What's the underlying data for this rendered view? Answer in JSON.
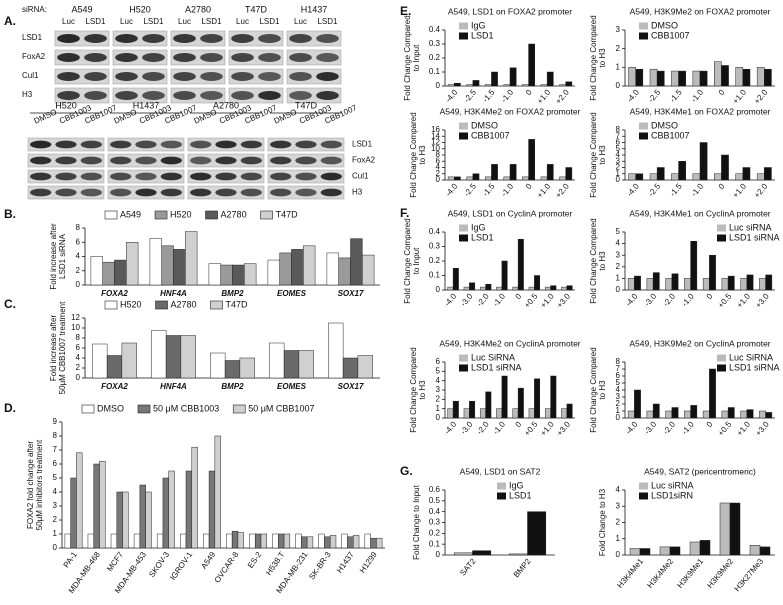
{
  "blots": {
    "panel": "A.",
    "siRNA_label": "siRNA:",
    "top": {
      "cell_lines": [
        {
          "name": "A549",
          "lanes": [
            "Luc",
            "LSD1"
          ]
        },
        {
          "name": "H520",
          "lanes": [
            "Luc",
            "LSD1"
          ]
        },
        {
          "name": "A2780",
          "lanes": [
            "Luc",
            "LSD1"
          ]
        },
        {
          "name": "T47D",
          "lanes": [
            "Luc",
            "LSD1"
          ]
        },
        {
          "name": "H1437",
          "lanes": [
            "Luc",
            "LSD1"
          ]
        }
      ],
      "rows": [
        "LSD1",
        "FoxA2",
        "Cul1",
        "H3"
      ]
    },
    "bottom": {
      "cell_lines": [
        {
          "name": "H520",
          "lanes": [
            "DMSO",
            "CBB1003",
            "CBB1007"
          ]
        },
        {
          "name": "H1437",
          "lanes": [
            "DMSO",
            "CBB1003",
            "CBB1007"
          ]
        },
        {
          "name": "A2780",
          "lanes": [
            "DMSO",
            "CBB1003",
            "CBB1007"
          ]
        },
        {
          "name": "T47D",
          "lanes": [
            "DMSO",
            "CBB1003",
            "CBB1007"
          ]
        }
      ],
      "rows": [
        "LSD1",
        "FoxA2",
        "Cul1",
        "H3"
      ]
    }
  },
  "chart_data": [
    {
      "type": "bar",
      "panel": "B.",
      "ylabel": [
        "Fold increase after",
        "LSD1 siRNA"
      ],
      "legend": "top",
      "categories": [
        "FOXA2",
        "HNF4A",
        "BMP2",
        "EOMES",
        "SOX17"
      ],
      "ylim": [
        0,
        8
      ],
      "yticks": [
        0,
        2,
        4,
        6,
        8
      ],
      "series": [
        {
          "name": "A549",
          "color": "#ffffff",
          "values": [
            4,
            6.5,
            3,
            3.5,
            4.5
          ]
        },
        {
          "name": "H520",
          "color": "#9a9a9a",
          "values": [
            3.2,
            5.5,
            2.8,
            4.5,
            3.8
          ]
        },
        {
          "name": "A2780",
          "color": "#5a5a5a",
          "values": [
            3.5,
            5,
            2.8,
            5,
            6.5
          ]
        },
        {
          "name": "T47D",
          "color": "#d0d0d0",
          "values": [
            6,
            7.5,
            3,
            5.5,
            4.2
          ]
        }
      ]
    },
    {
      "type": "bar",
      "panel": "C.",
      "ylabel": [
        "Fold increase after",
        "50μM CBB1007 treatment"
      ],
      "legend": "top",
      "categories": [
        "FOXA2",
        "HNF4A",
        "BMP2",
        "EOMES",
        "SOX17"
      ],
      "ylim": [
        0,
        12
      ],
      "yticks": [
        0,
        2,
        4,
        6,
        8,
        10,
        12
      ],
      "series": [
        {
          "name": "H520",
          "color": "#ffffff",
          "values": [
            6.8,
            9.5,
            5,
            7,
            11
          ]
        },
        {
          "name": "A2780",
          "color": "#6a6a6a",
          "values": [
            4.5,
            8.5,
            3.5,
            5.5,
            4
          ]
        },
        {
          "name": "T47D",
          "color": "#d0d0d0",
          "values": [
            7,
            8.5,
            4,
            5.5,
            4.5
          ]
        }
      ]
    },
    {
      "type": "bar",
      "panel": "D.",
      "ylabel": [
        "FOXA2 fold change after",
        "50μM inhibitors treatment"
      ],
      "legend": "top",
      "categories": [
        "PA-1",
        "MDA-MB-468",
        "MCF7",
        "MDA-MB-453",
        "SKOV-3",
        "IGROV-1",
        "A549",
        "OVCAR-8",
        "ES-2",
        "H538.T",
        "MDA-MB-231",
        "SK-BR-3",
        "H1437",
        "H1299"
      ],
      "ylim": [
        0,
        9
      ],
      "yticks": [
        0,
        1,
        2,
        3,
        4,
        5,
        6,
        7,
        8,
        9
      ],
      "series": [
        {
          "name": "DMSO",
          "color": "#ffffff",
          "values": [
            1,
            1,
            1,
            1,
            1,
            1,
            1,
            1,
            1,
            1,
            1,
            1,
            1,
            1
          ]
        },
        {
          "name": "50 μM CBB1003",
          "color": "#777777",
          "values": [
            5,
            6,
            4,
            4.5,
            5,
            5.5,
            5.5,
            1.2,
            1,
            1,
            0.8,
            0.8,
            0.8,
            0.7
          ]
        },
        {
          "name": "50 μM CBB1007",
          "color": "#cfcfcf",
          "values": [
            6.8,
            6.2,
            4,
            4,
            5.5,
            7.2,
            8,
            1.1,
            1,
            1,
            0.8,
            0.9,
            0.9,
            0.7
          ]
        }
      ]
    },
    {
      "type": "bar",
      "panel": "E.",
      "title": "A549, LSD1 on FOXA2 promoter",
      "ylabel": [
        "Fold Change Compared",
        "to Input"
      ],
      "legend": "upper left",
      "categories": [
        "-4.0",
        "-2.5",
        "-1.5",
        "-1.0",
        "0",
        "+1.0",
        "+2.0"
      ],
      "ylim": [
        0,
        0.4
      ],
      "yticks": [
        0,
        0.1,
        0.2,
        0.3,
        0.4
      ],
      "series": [
        {
          "name": "IgG",
          "color": "#bbbbbb",
          "values": [
            0.01,
            0.01,
            0.01,
            0.01,
            0.01,
            0.01,
            0.01
          ]
        },
        {
          "name": "LSD1",
          "color": "#111111",
          "values": [
            0.02,
            0.04,
            0.1,
            0.13,
            0.3,
            0.1,
            0.03
          ]
        }
      ]
    },
    {
      "type": "bar",
      "title": "A549, H3K9Me2 on FOXA2 promoter",
      "ylabel": [
        "Fold Change Compared",
        "to H3"
      ],
      "legend": "upper left",
      "categories": [
        "-4.0",
        "-2.5",
        "-1.5",
        "-1.0",
        "0",
        "+1.0",
        "+2.0"
      ],
      "ylim": [
        0,
        3
      ],
      "yticks": [
        0,
        1,
        2,
        3
      ],
      "series": [
        {
          "name": "DMSO",
          "color": "#bbbbbb",
          "values": [
            1,
            0.9,
            0.8,
            0.8,
            1.3,
            1,
            1
          ]
        },
        {
          "name": "CBB1007",
          "color": "#111111",
          "values": [
            0.9,
            0.8,
            0.8,
            0.8,
            1.1,
            0.9,
            0.9
          ]
        }
      ]
    },
    {
      "type": "bar",
      "title": "A549, H3K4Me2 on FOXA2 promoter",
      "ylabel": [
        "Fold Change Compared",
        "to H3"
      ],
      "legend": "upper left",
      "categories": [
        "-4.0",
        "-2.5",
        "-1.5",
        "-1.0",
        "0",
        "+1.0",
        "+2.0"
      ],
      "ylim": [
        0,
        16
      ],
      "yticks": [
        0,
        2,
        4,
        6,
        8,
        10,
        12,
        14,
        16
      ],
      "series": [
        {
          "name": "DMSO",
          "color": "#bbbbbb",
          "values": [
            1,
            1,
            1,
            1,
            1,
            1,
            1
          ]
        },
        {
          "name": "CBB1007",
          "color": "#111111",
          "values": [
            1,
            2,
            5,
            5,
            13,
            5,
            4
          ]
        }
      ]
    },
    {
      "type": "bar",
      "title": "A549, H3K4Me1 on FOXA2 promoter",
      "ylabel": [
        "Fold Change Compared",
        "to H3"
      ],
      "legend": "upper left",
      "categories": [
        "-4.0",
        "-2.5",
        "-1.5",
        "-1.0",
        "0",
        "+1.0",
        "+2.0"
      ],
      "ylim": [
        0,
        8
      ],
      "yticks": [
        0,
        1,
        2,
        3,
        4,
        5,
        6,
        7,
        8
      ],
      "series": [
        {
          "name": "DMSO",
          "color": "#bbbbbb",
          "values": [
            1,
            1,
            1,
            1,
            1,
            1,
            1
          ]
        },
        {
          "name": "CBB1007",
          "color": "#111111",
          "values": [
            1,
            2,
            3,
            6,
            4,
            2,
            2
          ]
        }
      ]
    },
    {
      "type": "bar",
      "panel": "F.",
      "title": "A549, LSD1 on CyclinA promoter",
      "ylabel": [
        "Fold Change Compared",
        "to Input"
      ],
      "legend": "upper left",
      "categories": [
        "-4.0",
        "-3.0",
        "-2.0",
        "-1.0",
        "0",
        "+0.5",
        "+1.0",
        "+3.0"
      ],
      "ylim": [
        0,
        0.4
      ],
      "yticks": [
        0,
        0.1,
        0.2,
        0.3,
        0.4
      ],
      "series": [
        {
          "name": "IgG",
          "color": "#bbbbbb",
          "values": [
            0.02,
            0.02,
            0.02,
            0.02,
            0.02,
            0.02,
            0.02,
            0.02
          ]
        },
        {
          "name": "LSD1",
          "color": "#111111",
          "values": [
            0.15,
            0.05,
            0.04,
            0.2,
            0.35,
            0.1,
            0.03,
            0.03
          ]
        }
      ]
    },
    {
      "type": "bar",
      "title": "A549, H3K4Me1 on CyclinA promoter",
      "ylabel": [
        "Fold Change Compared",
        "to H3"
      ],
      "legend": "upper right",
      "categories": [
        "-4.0",
        "-3.0",
        "-2.0",
        "-1.0",
        "0",
        "+0.5",
        "+1.0",
        "+3.0"
      ],
      "ylim": [
        0,
        5
      ],
      "yticks": [
        0,
        1,
        2,
        3,
        4,
        5
      ],
      "series": [
        {
          "name": "Luc siRNA",
          "color": "#bbbbbb",
          "values": [
            1,
            1,
            1,
            1,
            1,
            1,
            1,
            1
          ]
        },
        {
          "name": "LSD1 siRNA",
          "color": "#111111",
          "values": [
            1.2,
            1.5,
            1.4,
            4.2,
            3,
            1.2,
            1.3,
            1.3
          ]
        }
      ]
    },
    {
      "type": "bar",
      "title": "A549, H3K4Me2 on CyclinA promoter",
      "ylabel": [
        "Fold Change Compared",
        "to H3"
      ],
      "legend": "upper left",
      "categories": [
        "-4.0",
        "-3.0",
        "-2.0",
        "-1.0",
        "0",
        "+0.5",
        "+1.0",
        "+3.0"
      ],
      "ylim": [
        0,
        6
      ],
      "yticks": [
        0,
        1,
        2,
        3,
        4,
        5,
        6
      ],
      "series": [
        {
          "name": "Luc SiRNA",
          "color": "#bbbbbb",
          "values": [
            1,
            1,
            1,
            1,
            1,
            1,
            1,
            1
          ]
        },
        {
          "name": "LSD1 siRNA",
          "color": "#111111",
          "values": [
            1.8,
            1.8,
            2.8,
            4.5,
            3.2,
            4.2,
            4.5,
            1.5
          ]
        }
      ]
    },
    {
      "type": "bar",
      "title": "A549, H3K9Me2 on CyclinA promoter",
      "ylabel": [
        "Fold Change Compared",
        "to H3"
      ],
      "legend": "upper right",
      "categories": [
        "-4.0",
        "-3.0",
        "-2.0",
        "-1.0",
        "0",
        "+0.5",
        "+1.0",
        "+3.0"
      ],
      "ylim": [
        0,
        8
      ],
      "yticks": [
        0,
        1,
        2,
        3,
        4,
        5,
        6,
        7,
        8
      ],
      "series": [
        {
          "name": "Luc SiRNA",
          "color": "#bbbbbb",
          "values": [
            1,
            1,
            1,
            1,
            1,
            1,
            1,
            1
          ]
        },
        {
          "name": "LSD1 siRNA",
          "color": "#111111",
          "values": [
            4,
            2,
            1.5,
            1.8,
            7,
            1.5,
            1.2,
            0.8
          ]
        }
      ]
    },
    {
      "type": "bar",
      "panel": "G.",
      "title": "A549, LSD1 on SAT2",
      "ylabel": [
        "Fold Change to Input"
      ],
      "legend": "upper right",
      "categories": [
        "SAT2",
        "BMP2"
      ],
      "ylim": [
        0,
        0.6
      ],
      "yticks": [
        0,
        0.1,
        0.2,
        0.3,
        0.4,
        0.5,
        0.6
      ],
      "series": [
        {
          "name": "IgG",
          "color": "#bbbbbb",
          "values": [
            0.02,
            0.01
          ]
        },
        {
          "name": "LSD1",
          "color": "#111111",
          "values": [
            0.04,
            0.4
          ]
        }
      ]
    },
    {
      "type": "bar",
      "title": "A549, SAT2 (pericentromeric)",
      "ylabel": [
        "Fold Change to H3"
      ],
      "legend": "upper left",
      "categories": [
        "H3K4Me1",
        "H3K4Me2",
        "H3K9Me1",
        "H3K9Me2",
        "H3K27Me3"
      ],
      "ylim": [
        0,
        4
      ],
      "yticks": [
        0,
        1,
        2,
        3,
        4
      ],
      "series": [
        {
          "name": "Luc siRNA",
          "color": "#bbbbbb",
          "values": [
            0.4,
            0.5,
            0.8,
            3.2,
            0.6
          ]
        },
        {
          "name": "LSD1siRN",
          "color": "#111111",
          "values": [
            0.4,
            0.5,
            0.9,
            3.2,
            0.5
          ]
        }
      ]
    }
  ]
}
